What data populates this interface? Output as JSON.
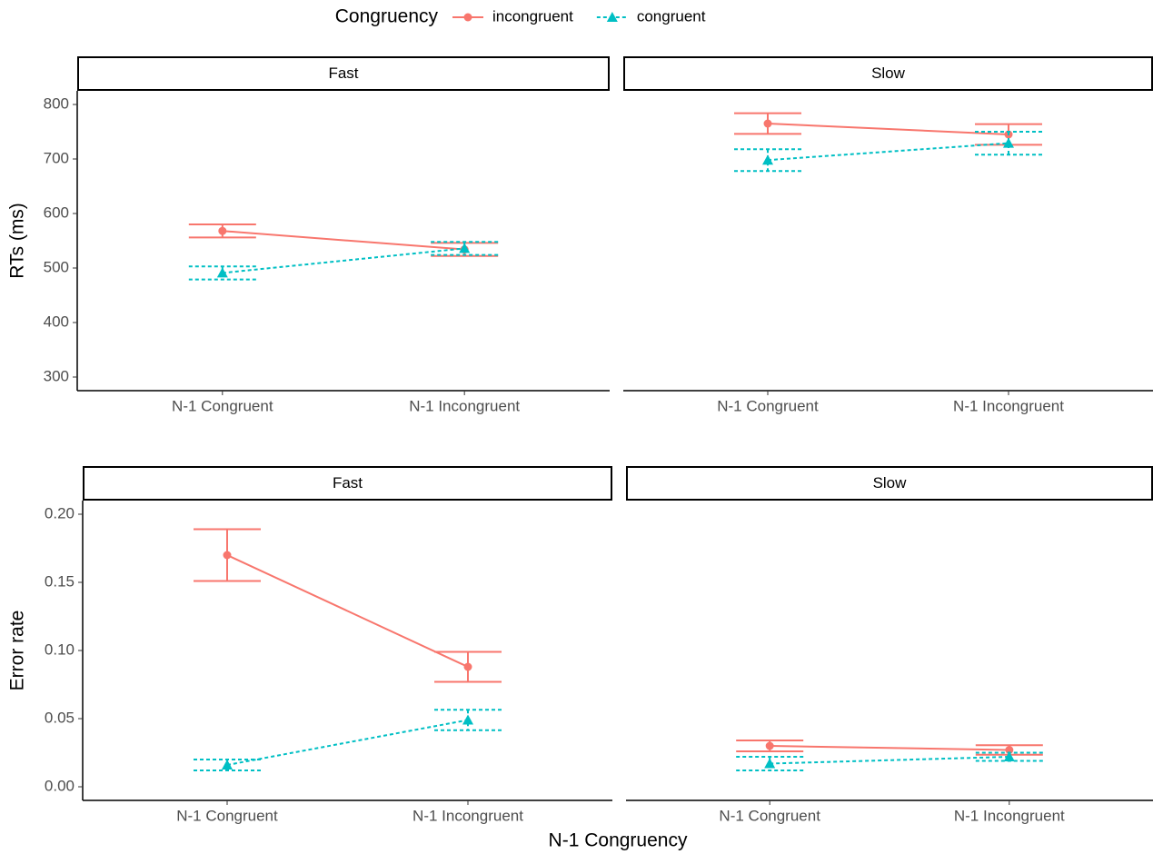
{
  "legend": {
    "title": "Congruency"
  },
  "xlabel": "N-1 Congruency",
  "chart_data": [
    {
      "type": "line",
      "title": "Fast",
      "ylabel": "RTs (ms)",
      "categories": [
        "N-1 Congruent",
        "N-1 Incongruent"
      ],
      "ylim": [
        275,
        825
      ],
      "yticks": [
        300,
        400,
        500,
        600,
        700,
        800
      ],
      "series": [
        {
          "name": "incongruent",
          "color": "#f8766d",
          "dash": "solid",
          "marker": "circle",
          "values": [
            568,
            534
          ],
          "errors": [
            12,
            12
          ]
        },
        {
          "name": "congruent",
          "color": "#00bfc4",
          "dash": "dashed",
          "marker": "triangle",
          "values": [
            491,
            536
          ],
          "errors": [
            12,
            12
          ]
        }
      ]
    },
    {
      "type": "line",
      "title": "Slow",
      "categories": [
        "N-1 Congruent",
        "N-1 Incongruent"
      ],
      "ylim": [
        275,
        825
      ],
      "series": [
        {
          "name": "incongruent",
          "color": "#f8766d",
          "dash": "solid",
          "marker": "circle",
          "values": [
            765,
            745
          ],
          "errors": [
            19,
            19
          ]
        },
        {
          "name": "congruent",
          "color": "#00bfc4",
          "dash": "dashed",
          "marker": "triangle",
          "values": [
            698,
            729
          ],
          "errors": [
            20,
            21
          ]
        }
      ]
    },
    {
      "type": "line",
      "title": "Fast",
      "ylabel": "Error rate",
      "categories": [
        "N-1 Congruent",
        "N-1 Incongruent"
      ],
      "ylim": [
        -0.01,
        0.21
      ],
      "yticks": [
        {
          "value": 0,
          "label": "0.00"
        },
        {
          "value": 0.05,
          "label": "0.05"
        },
        {
          "value": 0.1,
          "label": "0.10"
        },
        {
          "value": 0.15,
          "label": "0.15"
        },
        {
          "value": 0.2,
          "label": "0.20"
        }
      ],
      "series": [
        {
          "name": "incongruent",
          "color": "#f8766d",
          "dash": "solid",
          "marker": "circle",
          "values": [
            0.17,
            0.088
          ],
          "errors": [
            0.019,
            0.011
          ]
        },
        {
          "name": "congruent",
          "color": "#00bfc4",
          "dash": "dashed",
          "marker": "triangle",
          "values": [
            0.016,
            0.049
          ],
          "errors": [
            0.004,
            0.0075
          ]
        }
      ]
    },
    {
      "type": "line",
      "title": "Slow",
      "categories": [
        "N-1 Congruent",
        "N-1 Incongruent"
      ],
      "ylim": [
        -0.01,
        0.21
      ],
      "series": [
        {
          "name": "incongruent",
          "color": "#f8766d",
          "dash": "solid",
          "marker": "circle",
          "values": [
            0.03,
            0.027
          ],
          "errors": [
            0.004,
            0.0035
          ]
        },
        {
          "name": "congruent",
          "color": "#00bfc4",
          "dash": "dashed",
          "marker": "triangle",
          "values": [
            0.017,
            0.022
          ],
          "errors": [
            0.005,
            0.003
          ]
        }
      ]
    }
  ]
}
